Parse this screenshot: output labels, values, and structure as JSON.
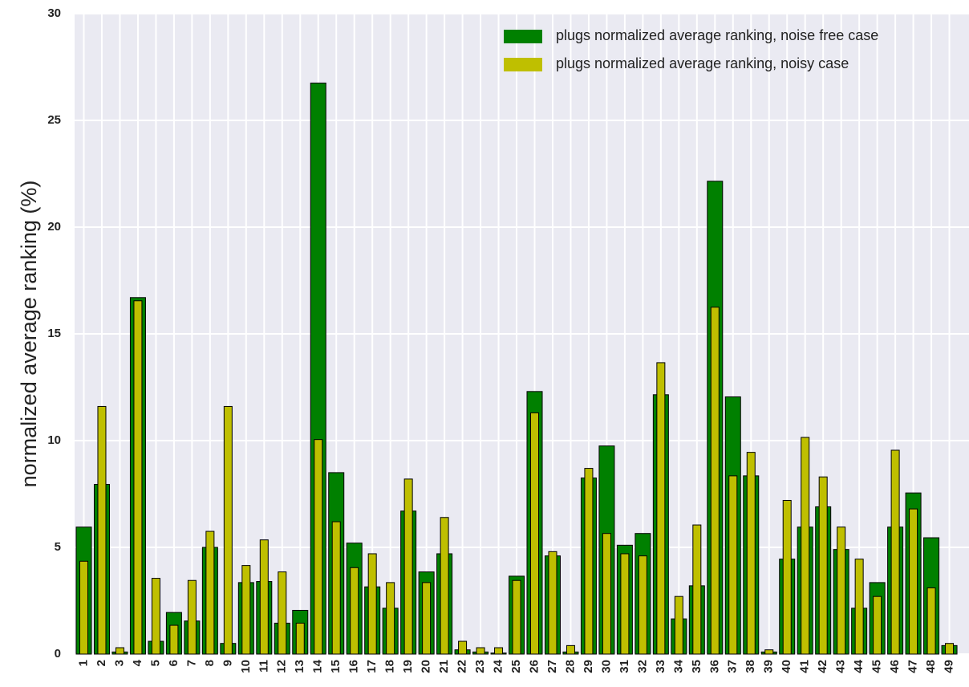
{
  "chart_data": {
    "type": "bar",
    "ylabel": "normalized average ranking (%)",
    "categories": [
      "1",
      "2",
      "3",
      "4",
      "5",
      "6",
      "7",
      "8",
      "9",
      "10",
      "11",
      "12",
      "13",
      "14",
      "15",
      "16",
      "17",
      "18",
      "19",
      "20",
      "21",
      "22",
      "23",
      "24",
      "25",
      "26",
      "27",
      "28",
      "29",
      "30",
      "31",
      "32",
      "33",
      "34",
      "35",
      "36",
      "37",
      "38",
      "39",
      "40",
      "41",
      "42",
      "43",
      "44",
      "45",
      "46",
      "47",
      "48",
      "49"
    ],
    "series": [
      {
        "name": "plugs normalized average ranking, noise free case",
        "color": "#008000",
        "values": [
          5.95,
          7.95,
          0.1,
          16.7,
          0.6,
          1.95,
          1.55,
          5.0,
          0.5,
          3.35,
          3.4,
          1.45,
          2.05,
          26.75,
          8.5,
          5.2,
          3.15,
          2.15,
          6.7,
          3.85,
          4.7,
          0.2,
          0.1,
          0.05,
          3.65,
          12.3,
          4.6,
          0.1,
          8.25,
          9.75,
          5.1,
          5.65,
          12.15,
          1.65,
          3.2,
          22.15,
          12.05,
          8.35,
          0.1,
          4.45,
          5.95,
          6.9,
          4.9,
          2.15,
          3.35,
          5.95,
          7.55,
          5.45,
          0.4
        ]
      },
      {
        "name": "plugs normalized average ranking, noisy case",
        "color": "#bfbf00",
        "values": [
          4.35,
          11.6,
          0.3,
          16.55,
          3.55,
          1.35,
          3.45,
          5.75,
          11.6,
          4.15,
          5.35,
          3.85,
          1.45,
          10.05,
          6.2,
          4.05,
          4.7,
          3.35,
          8.2,
          3.35,
          6.4,
          0.6,
          0.3,
          0.3,
          3.45,
          11.3,
          4.8,
          0.4,
          8.7,
          5.65,
          4.7,
          4.6,
          13.65,
          2.7,
          6.05,
          16.25,
          8.35,
          9.45,
          0.2,
          7.2,
          10.15,
          8.3,
          5.95,
          4.45,
          2.7,
          9.55,
          6.8,
          3.1,
          0.5
        ]
      }
    ],
    "ylim": [
      0,
      30
    ],
    "yticks": [
      0,
      5,
      10,
      15,
      20,
      25,
      30
    ],
    "grid": true,
    "legend": "upper right"
  }
}
